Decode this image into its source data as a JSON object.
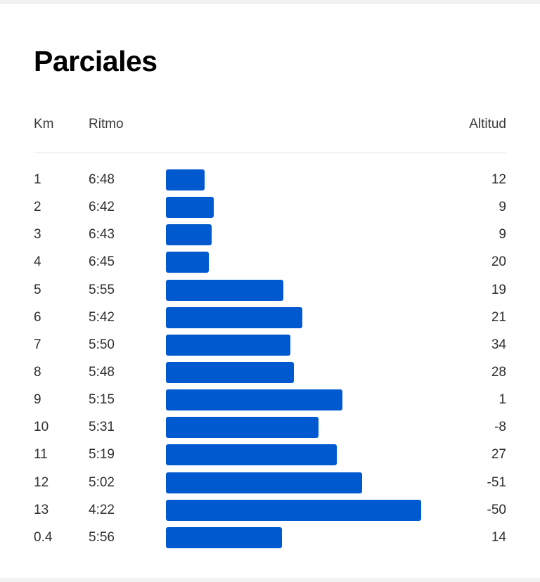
{
  "title": "Parciales",
  "columns": {
    "km": "Km",
    "pace": "Ritmo",
    "elevation": "Altitud"
  },
  "colors": {
    "bar": "#0059cf"
  },
  "splits": [
    {
      "km": "1",
      "pace": "6:48",
      "pace_seconds": 408,
      "elevation": "12"
    },
    {
      "km": "2",
      "pace": "6:42",
      "pace_seconds": 402,
      "elevation": "9"
    },
    {
      "km": "3",
      "pace": "6:43",
      "pace_seconds": 403,
      "elevation": "9"
    },
    {
      "km": "4",
      "pace": "6:45",
      "pace_seconds": 405,
      "elevation": "20"
    },
    {
      "km": "5",
      "pace": "5:55",
      "pace_seconds": 355,
      "elevation": "19"
    },
    {
      "km": "6",
      "pace": "5:42",
      "pace_seconds": 342,
      "elevation": "21"
    },
    {
      "km": "7",
      "pace": "5:50",
      "pace_seconds": 350,
      "elevation": "34"
    },
    {
      "km": "8",
      "pace": "5:48",
      "pace_seconds": 348,
      "elevation": "28"
    },
    {
      "km": "9",
      "pace": "5:15",
      "pace_seconds": 315,
      "elevation": "1"
    },
    {
      "km": "10",
      "pace": "5:31",
      "pace_seconds": 331,
      "elevation": "-8"
    },
    {
      "km": "11",
      "pace": "5:19",
      "pace_seconds": 319,
      "elevation": "27"
    },
    {
      "km": "12",
      "pace": "5:02",
      "pace_seconds": 302,
      "elevation": "-51"
    },
    {
      "km": "13",
      "pace": "4:22",
      "pace_seconds": 262,
      "elevation": "-50"
    },
    {
      "km": "0.4",
      "pace": "5:56",
      "pace_seconds": 356,
      "elevation": "14"
    }
  ]
}
